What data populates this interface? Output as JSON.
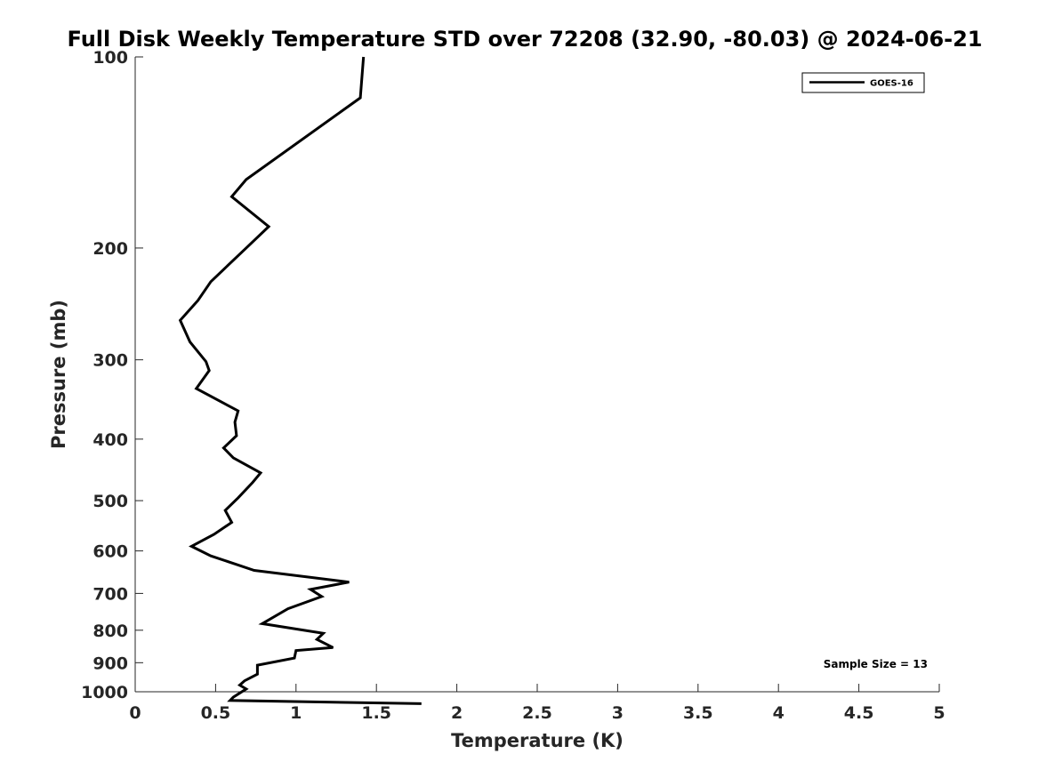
{
  "chart_data": {
    "type": "line",
    "title": "Full Disk Weekly Temperature STD over 72208 (32.90, -80.03) @ 2024-06-21",
    "xlabel": "Temperature (K)",
    "ylabel": "Pressure (mb)",
    "xlim": [
      0,
      5
    ],
    "ylim": [
      1000,
      100
    ],
    "y_scale": "log",
    "y_reversed": true,
    "x_ticks": [
      0,
      0.5,
      1,
      1.5,
      2,
      2.5,
      3,
      3.5,
      4,
      4.5,
      5
    ],
    "x_tick_labels": [
      "0",
      "0.5",
      "1",
      "1.5",
      "2",
      "2.5",
      "3",
      "3.5",
      "4",
      "4.5",
      "5"
    ],
    "y_ticks": [
      100,
      200,
      300,
      400,
      500,
      600,
      700,
      800,
      900,
      1000
    ],
    "y_tick_labels": [
      "100",
      "200",
      "300",
      "400",
      "500",
      "600",
      "700",
      "800",
      "900",
      "1000"
    ],
    "grid": false,
    "legend_position": "top-right",
    "series": [
      {
        "name": "GOES-16",
        "color": "#000000",
        "x": [
          1.42,
          1.4,
          0.69,
          0.6,
          0.83,
          0.69,
          0.47,
          0.39,
          0.28,
          0.34,
          0.44,
          0.46,
          0.38,
          0.64,
          0.62,
          0.63,
          0.55,
          0.61,
          0.78,
          0.73,
          0.64,
          0.56,
          0.6,
          0.49,
          0.35,
          0.47,
          0.74,
          1.33,
          1.09,
          1.16,
          0.95,
          0.79,
          1.17,
          1.13,
          1.23,
          1.0,
          0.99,
          0.76,
          0.76,
          0.68,
          0.65,
          0.69,
          0.61,
          0.59,
          1.78
        ],
        "y": [
          100,
          116,
          156,
          166,
          185,
          200,
          226,
          242,
          260,
          281,
          302,
          312,
          333,
          361,
          376,
          395,
          413,
          428,
          452,
          468,
          495,
          518,
          541,
          565,
          590,
          611,
          644,
          672,
          690,
          708,
          740,
          781,
          809,
          827,
          852,
          861,
          885,
          908,
          938,
          961,
          976,
          990,
          1020,
          1032,
          1044
        ]
      }
    ],
    "annotations": [
      {
        "text": "Sample Size = 13",
        "position": "bottom-right"
      }
    ]
  }
}
